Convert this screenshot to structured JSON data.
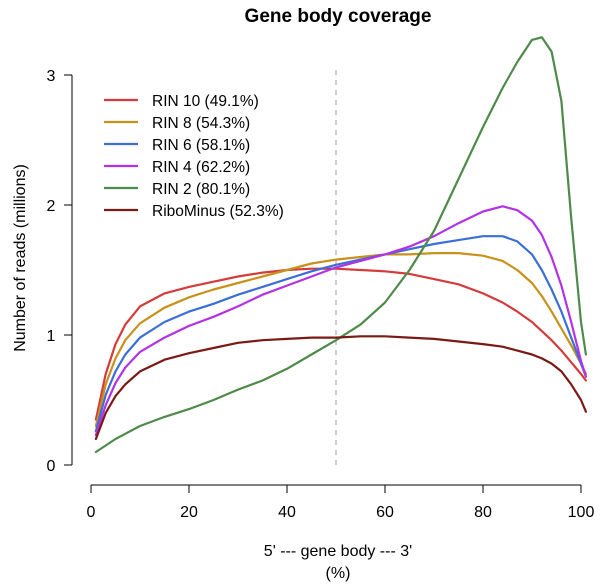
{
  "chart_data": {
    "type": "line",
    "title": "Gene body coverage",
    "xlabel_line1": "5' --- gene body --- 3'",
    "xlabel_line2": "(%)",
    "ylabel": "Number of reads (millions)",
    "xlim": [
      0,
      100
    ],
    "ylim": [
      0,
      3.3
    ],
    "xticks": [
      0,
      20,
      40,
      60,
      80,
      100
    ],
    "yticks": [
      0,
      1,
      2,
      3
    ],
    "reference_line_x": 50,
    "legend_position": "top-left",
    "grid": false,
    "x": [
      1,
      3,
      5,
      7,
      10,
      15,
      20,
      25,
      30,
      35,
      40,
      45,
      50,
      55,
      60,
      65,
      70,
      75,
      80,
      84,
      87,
      90,
      92,
      94,
      96,
      98,
      100,
      101
    ],
    "series": [
      {
        "name": "RIN 10 (49.1%)",
        "color": "#d63b3b",
        "values": [
          0.35,
          0.7,
          0.93,
          1.08,
          1.22,
          1.32,
          1.37,
          1.41,
          1.45,
          1.48,
          1.5,
          1.51,
          1.51,
          1.5,
          1.49,
          1.47,
          1.43,
          1.39,
          1.32,
          1.25,
          1.18,
          1.1,
          1.03,
          0.96,
          0.88,
          0.79,
          0.7,
          0.65
        ]
      },
      {
        "name": "RIN 8 (54.3%)",
        "color": "#c8911a",
        "values": [
          0.3,
          0.62,
          0.82,
          0.96,
          1.09,
          1.21,
          1.29,
          1.35,
          1.4,
          1.45,
          1.5,
          1.55,
          1.58,
          1.6,
          1.62,
          1.62,
          1.63,
          1.63,
          1.61,
          1.57,
          1.5,
          1.4,
          1.3,
          1.18,
          1.05,
          0.92,
          0.78,
          0.7
        ]
      },
      {
        "name": "RIN 6 (58.1%)",
        "color": "#3b6ed6",
        "values": [
          0.26,
          0.54,
          0.72,
          0.85,
          0.98,
          1.1,
          1.18,
          1.24,
          1.31,
          1.37,
          1.43,
          1.49,
          1.54,
          1.58,
          1.62,
          1.66,
          1.7,
          1.73,
          1.76,
          1.76,
          1.72,
          1.62,
          1.5,
          1.35,
          1.18,
          0.98,
          0.78,
          0.68
        ]
      },
      {
        "name": "RIN 4 (62.2%)",
        "color": "#b332e6",
        "values": [
          0.23,
          0.46,
          0.63,
          0.75,
          0.87,
          0.98,
          1.07,
          1.14,
          1.22,
          1.31,
          1.38,
          1.45,
          1.52,
          1.57,
          1.62,
          1.68,
          1.76,
          1.86,
          1.95,
          1.99,
          1.96,
          1.88,
          1.77,
          1.6,
          1.38,
          1.1,
          0.8,
          0.68
        ]
      },
      {
        "name": "RIN 2 (80.1%)",
        "color": "#4e8a48",
        "values": [
          0.1,
          0.15,
          0.2,
          0.24,
          0.3,
          0.37,
          0.43,
          0.5,
          0.58,
          0.65,
          0.74,
          0.85,
          0.96,
          1.08,
          1.25,
          1.5,
          1.8,
          2.2,
          2.6,
          2.9,
          3.1,
          3.27,
          3.29,
          3.18,
          2.8,
          1.9,
          1.1,
          0.85
        ]
      },
      {
        "name": "RiboMinus (52.3%)",
        "color": "#7a1a14",
        "values": [
          0.2,
          0.4,
          0.53,
          0.62,
          0.72,
          0.81,
          0.86,
          0.9,
          0.94,
          0.96,
          0.97,
          0.98,
          0.98,
          0.99,
          0.99,
          0.98,
          0.97,
          0.95,
          0.93,
          0.91,
          0.88,
          0.85,
          0.82,
          0.78,
          0.72,
          0.62,
          0.5,
          0.41
        ]
      }
    ]
  }
}
